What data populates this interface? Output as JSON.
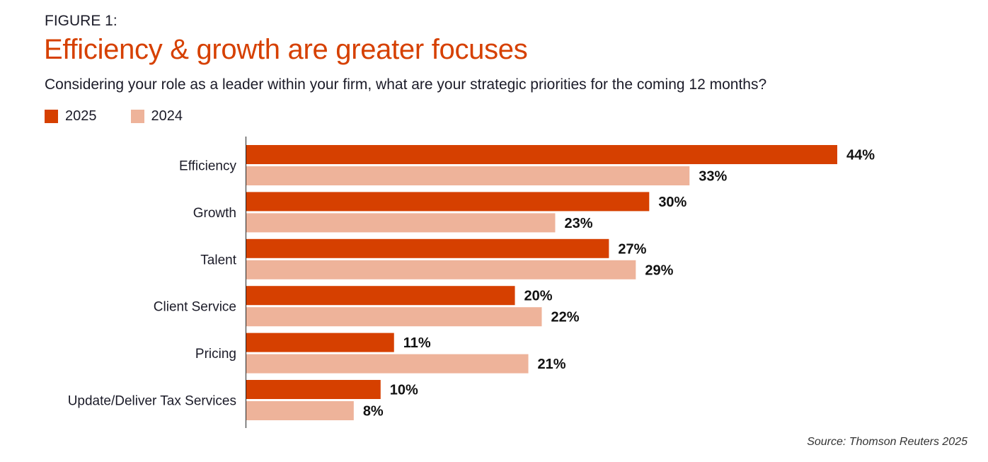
{
  "figure_label": "FIGURE 1:",
  "chart_data": {
    "type": "bar",
    "orientation": "horizontal",
    "title": "Efficiency & growth are greater focuses",
    "subtitle": "Considering your role as a leader within your firm, what are your strategic priorities for the coming 12 months?",
    "categories": [
      "Efficiency",
      "Growth",
      "Talent",
      "Client Service",
      "Pricing",
      "Update/Deliver Tax Services"
    ],
    "series": [
      {
        "name": "2025",
        "color": "#d64000",
        "values": [
          44,
          30,
          27,
          20,
          11,
          10
        ]
      },
      {
        "name": "2024",
        "color": "#eeb39a",
        "values": [
          33,
          23,
          29,
          22,
          21,
          8
        ]
      }
    ],
    "value_suffix": "%",
    "xlim": [
      0,
      44
    ],
    "grid": false,
    "legend_placement": "top-left",
    "title_color": "#d64000"
  },
  "source": "Source: Thomson Reuters 2025"
}
